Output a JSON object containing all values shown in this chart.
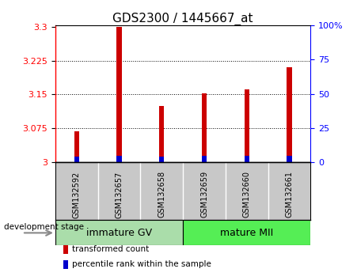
{
  "title": "GDS2300 / 1445667_at",
  "categories": [
    "GSM132592",
    "GSM132657",
    "GSM132658",
    "GSM132659",
    "GSM132660",
    "GSM132661"
  ],
  "red_values": [
    3.068,
    3.3,
    3.125,
    3.153,
    3.162,
    3.21
  ],
  "blue_values": [
    3.012,
    3.015,
    3.012,
    3.015,
    3.015,
    3.015
  ],
  "y_min": 3.0,
  "y_max": 3.3,
  "y_ticks": [
    3.0,
    3.075,
    3.15,
    3.225,
    3.3
  ],
  "y_tick_labels": [
    "3",
    "3.075",
    "3.15",
    "3.225",
    "3.3"
  ],
  "right_y_ticks": [
    0,
    25,
    50,
    75,
    100
  ],
  "right_y_tick_labels": [
    "0",
    "25",
    "50",
    "75",
    "100%"
  ],
  "groups": [
    {
      "label": "immature GV",
      "start": 0,
      "end": 2,
      "color": "#99EE99"
    },
    {
      "label": "mature MII",
      "start": 3,
      "end": 5,
      "color": "#44DD44"
    }
  ],
  "bar_width": 0.12,
  "blue_bar_width": 0.12,
  "red_color": "#CC0000",
  "blue_color": "#0000CC",
  "plot_bg": "#FFFFFF",
  "label_bg": "#C8C8C8",
  "group_bg_left": "#AAEEBB",
  "group_bg_right": "#44EE44",
  "legend_items": [
    {
      "label": "transformed count",
      "color": "#CC0000"
    },
    {
      "label": "percentile rank within the sample",
      "color": "#0000CC"
    }
  ],
  "stage_label": "development stage",
  "title_fontsize": 11,
  "tick_fontsize": 8,
  "cat_fontsize": 7,
  "group_fontsize": 9,
  "legend_fontsize": 7.5
}
